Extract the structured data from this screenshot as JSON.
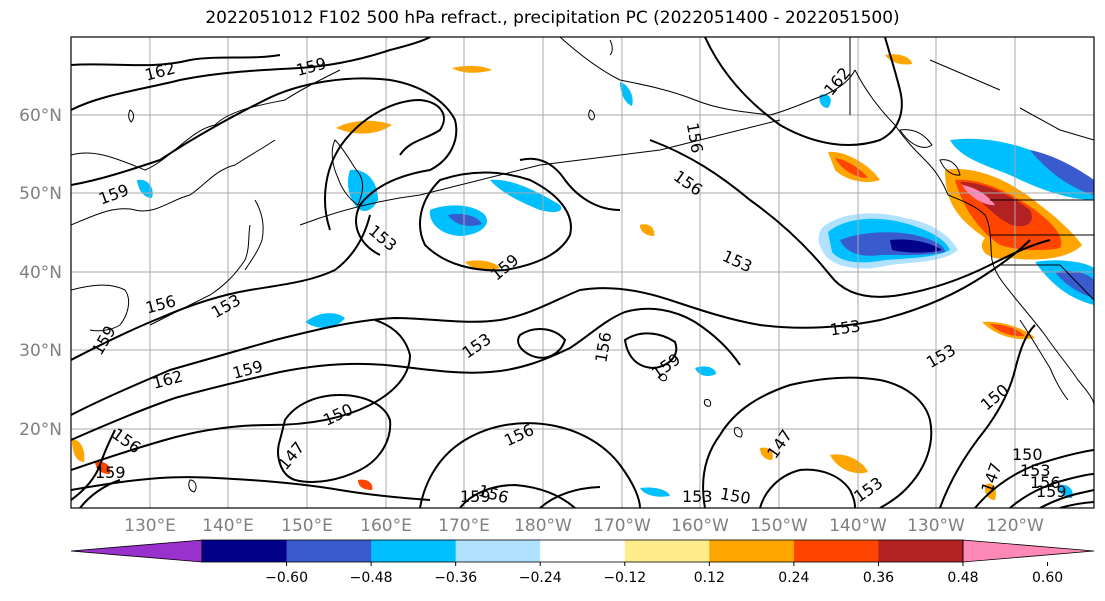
{
  "title": "2022051012 F102 500 hPa refract., precipitation PC (2022051400 - 2022051500)",
  "lat_labels": [
    "60°N",
    "50°N",
    "40°N",
    "30°N",
    "20°N"
  ],
  "lon_labels": [
    "130°E",
    "140°E",
    "150°E",
    "160°E",
    "170°E",
    "180°W",
    "170°W",
    "160°W",
    "150°W",
    "140°W",
    "130°W",
    "120°W"
  ],
  "contour_labels": [
    "162",
    "159",
    "162",
    "159",
    "156",
    "156",
    "153",
    "153",
    "159",
    "153",
    "153",
    "153",
    "159",
    "156",
    "159",
    "162",
    "159",
    "150",
    "156",
    "156",
    "147",
    "159",
    "156",
    "153",
    "150",
    "147",
    "153",
    "150",
    "147",
    "150",
    "153",
    "156",
    "159",
    "156",
    "159",
    "153"
  ],
  "colorbar": {
    "colors": [
      "#9932cc",
      "#00008b",
      "#3a5bcd",
      "#00bfff",
      "#b0e2ff",
      "#ffffff",
      "#ffed8b",
      "#ffa500",
      "#ff4500",
      "#b22222",
      "#ff89b6"
    ],
    "ticks": [
      "−0.60",
      "−0.48",
      "−0.36",
      "−0.24",
      "−0.12",
      "0.12",
      "0.24",
      "0.36",
      "0.48",
      "0.60"
    ]
  },
  "colors": {
    "contour": "#000000",
    "grid": "#a9a9a9",
    "axis_label": "#808080"
  }
}
